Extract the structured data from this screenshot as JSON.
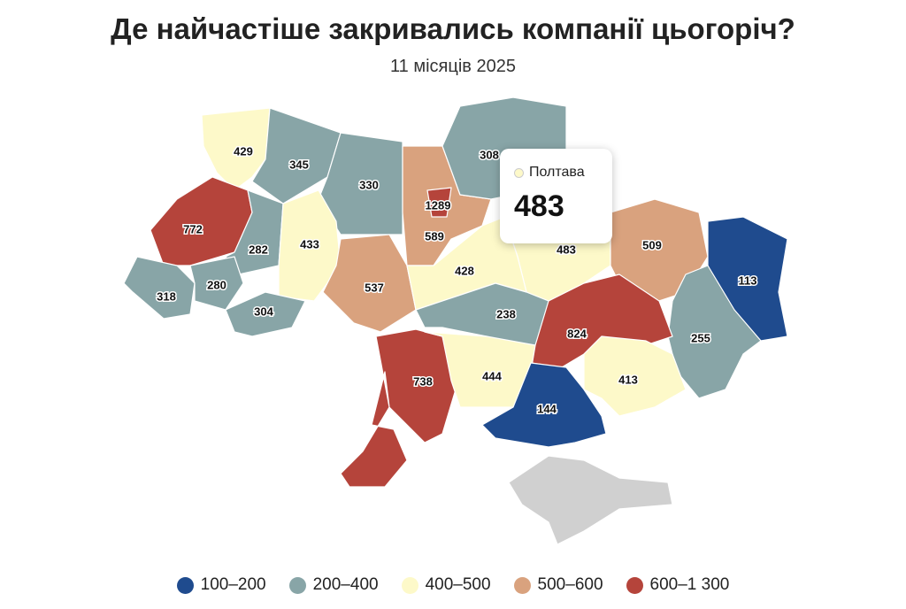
{
  "title": "Де найчастіше закривались компанії цьогоріч?",
  "subtitle": "11 місяців 2025",
  "regions": [
    {
      "value": 429,
      "color": "#fdf9c9"
    },
    {
      "value": 345,
      "color": "#88a5a7"
    },
    {
      "value": 330,
      "color": "#88a5a7"
    },
    {
      "value": 772,
      "color": "#b5443b"
    },
    {
      "value": 282,
      "color": "#88a5a7"
    },
    {
      "value": 433,
      "color": "#fdf9c9"
    },
    {
      "value": 318,
      "color": "#88a5a7"
    },
    {
      "value": 280,
      "color": "#88a5a7"
    },
    {
      "value": 304,
      "color": "#88a5a7"
    },
    {
      "value": 537,
      "color": "#d9a27e"
    },
    {
      "value": 589,
      "color": "#d9a27e"
    },
    {
      "value": 1289,
      "color": "#b5443b"
    },
    {
      "value": 308,
      "color": "#88a5a7"
    },
    {
      "value": 483,
      "color": "#fdf9c9"
    },
    {
      "value": 428,
      "color": "#fdf9c9"
    },
    {
      "value": 509,
      "color": "#d9a27e"
    },
    {
      "value": 113,
      "color": "#1f4b8e"
    },
    {
      "value": 255,
      "color": "#88a5a7"
    },
    {
      "value": 824,
      "color": "#b5443b"
    },
    {
      "value": 238,
      "color": "#88a5a7"
    },
    {
      "value": 738,
      "color": "#b5443b"
    },
    {
      "value": 444,
      "color": "#fdf9c9"
    },
    {
      "value": 413,
      "color": "#fdf9c9"
    },
    {
      "value": 144,
      "color": "#1f4b8e"
    },
    {
      "color": "#d0d0d0"
    }
  ],
  "tooltip": {
    "name": "Полтава",
    "value": 483,
    "color": "#fdf9c9"
  },
  "legend": [
    {
      "label": "100–200",
      "color": "#1f4b8e"
    },
    {
      "label": "200–400",
      "color": "#88a5a7"
    },
    {
      "label": "400–500",
      "color": "#fdf9c9"
    },
    {
      "label": "500–600",
      "color": "#d9a27e"
    },
    {
      "label": "600–1 300",
      "color": "#b5443b"
    }
  ]
}
